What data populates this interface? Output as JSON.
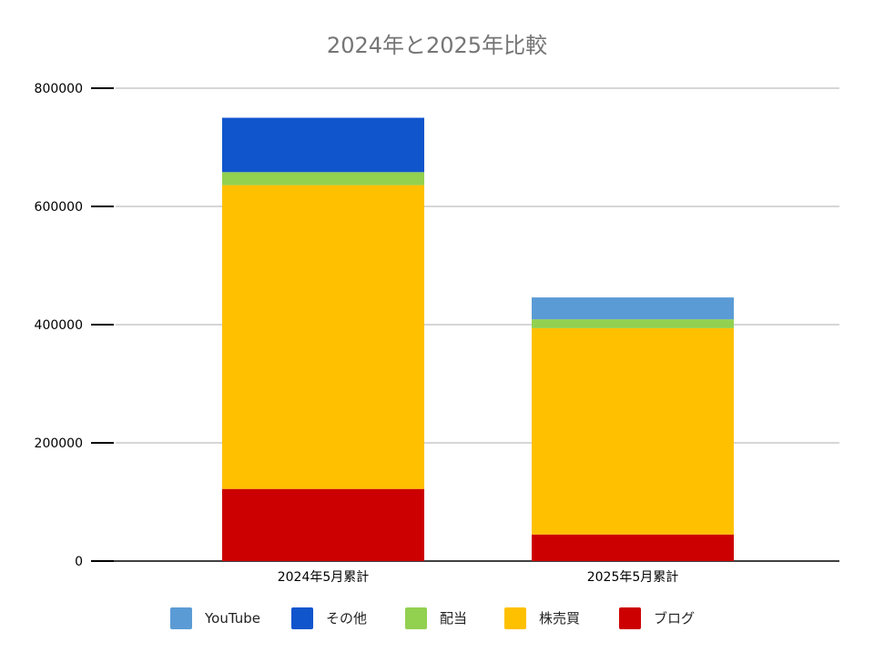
{
  "chart_data": {
    "type": "bar",
    "stacked": true,
    "title": "2024年と2025年比較",
    "categories": [
      "2024年5月累計",
      "2025年5月累計"
    ],
    "ylim": [
      0,
      800000
    ],
    "yticks": [
      "0",
      "200000",
      "400000",
      "600000",
      "800000"
    ],
    "grid": true,
    "legend_position": "bottom",
    "series": [
      {
        "name": "ブログ",
        "color": "#CC0000",
        "values": [
          122000,
          45000
        ]
      },
      {
        "name": "株売買",
        "color": "#FFC000",
        "values": [
          514000,
          349000
        ]
      },
      {
        "name": "配当",
        "color": "#92D050",
        "values": [
          22000,
          15000
        ]
      },
      {
        "name": "その他",
        "color": "#1155CC",
        "values": [
          92000,
          0
        ]
      },
      {
        "name": "YouTube",
        "color": "#5B9BD5",
        "values": [
          0,
          37000
        ]
      }
    ],
    "legend_order": [
      "YouTube",
      "その他",
      "配当",
      "株売買",
      "ブログ"
    ]
  }
}
